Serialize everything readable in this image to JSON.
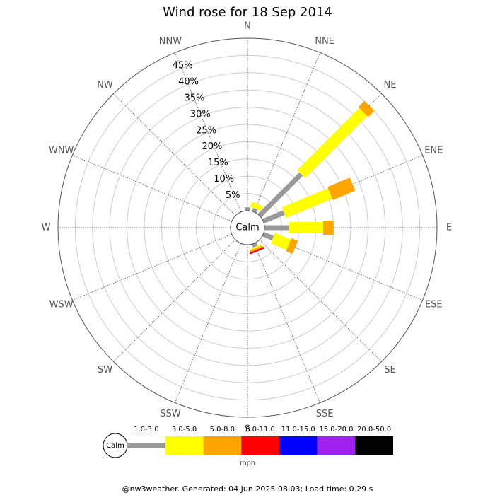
{
  "chart_data": {
    "type": "windrose",
    "title": "Wind rose for 18 Sep 2014",
    "center_label": "Calm",
    "unit": "mph",
    "footer": "@nw3weather. Generated: 04 Jun 2025 08:03; Load time: 0.29 s",
    "categories": [
      "N",
      "NNE",
      "NE",
      "ENE",
      "E",
      "ESE",
      "SE",
      "SSE",
      "S",
      "SSW",
      "SW",
      "WSW",
      "W",
      "WNW",
      "NW",
      "NNW"
    ],
    "rlim": [
      0,
      50
    ],
    "rticks": [
      {
        "value": 5,
        "label": "5%"
      },
      {
        "value": 10,
        "label": "10%"
      },
      {
        "value": 15,
        "label": "15%"
      },
      {
        "value": 20,
        "label": "20%"
      },
      {
        "value": 25,
        "label": "25%"
      },
      {
        "value": 30,
        "label": "30%"
      },
      {
        "value": 35,
        "label": "35%"
      },
      {
        "value": 40,
        "label": "40%"
      },
      {
        "value": 45,
        "label": "45%"
      }
    ],
    "series": [
      {
        "name": "1.0-3.0",
        "color": "#999999",
        "values": [
          1,
          1,
          17,
          6.5,
          7,
          3,
          0,
          1,
          0,
          0,
          0,
          0,
          0,
          0,
          0,
          0
        ]
      },
      {
        "name": "3.0-5.0",
        "color": "#ffff00",
        "values": [
          0,
          1.5,
          25.5,
          14.5,
          10,
          5,
          0,
          0.5,
          0,
          0,
          0,
          0,
          0,
          0,
          0,
          0
        ]
      },
      {
        "name": "5.0-8.0",
        "color": "#ffa500",
        "values": [
          0,
          0,
          2.5,
          7,
          3,
          2,
          0,
          0.5,
          0,
          0,
          0,
          0,
          0,
          0,
          0,
          0
        ]
      },
      {
        "name": "8.0-11.0",
        "color": "#ff0000",
        "values": [
          0,
          0,
          0,
          0,
          0,
          0,
          0,
          0.5,
          0,
          0,
          0,
          0,
          0,
          0,
          0,
          0
        ]
      },
      {
        "name": "11.0-15.0",
        "color": "#0000ff",
        "values": [
          0,
          0,
          0,
          0,
          0,
          0,
          0,
          0,
          0,
          0,
          0,
          0,
          0,
          0,
          0,
          0
        ]
      },
      {
        "name": "15.0-20.0",
        "color": "#a020f0",
        "values": [
          0,
          0,
          0,
          0,
          0,
          0,
          0,
          0,
          0,
          0,
          0,
          0,
          0,
          0,
          0,
          0
        ]
      },
      {
        "name": "20.0-50.0",
        "color": "#000000",
        "values": [
          0,
          0,
          0,
          0,
          0,
          0,
          0,
          0,
          0,
          0,
          0,
          0,
          0,
          0,
          0,
          0
        ]
      }
    ]
  }
}
